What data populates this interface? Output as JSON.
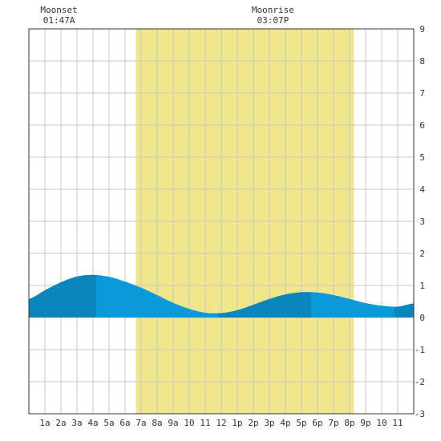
{
  "chart_data": {
    "type": "area",
    "title": "",
    "xlabel": "",
    "ylabel": "",
    "xlim": [
      0,
      24
    ],
    "ylim": [
      -3,
      9
    ],
    "y_axis_side": "right",
    "grid": true,
    "x_tick_labels": [
      "1a",
      "2a",
      "3a",
      "4a",
      "5a",
      "6a",
      "7a",
      "8a",
      "9a",
      "10",
      "11",
      "12",
      "1p",
      "2p",
      "3p",
      "4p",
      "5p",
      "6p",
      "7p",
      "8p",
      "9p",
      "10",
      "11"
    ],
    "y_ticks": [
      -3,
      -2,
      -1,
      0,
      1,
      2,
      3,
      4,
      5,
      6,
      7,
      8,
      9
    ],
    "daylight": {
      "start_hour": 6.67,
      "end_hour": 20.27
    },
    "annotations": [
      {
        "title": "Moonset",
        "time": "01:47A",
        "hour": 1.78
      },
      {
        "title": "Moonrise",
        "time": "03:07P",
        "hour": 15.12
      }
    ],
    "tide_curve": {
      "hours": [
        0,
        1,
        2,
        3,
        4,
        5,
        6,
        7,
        8,
        9,
        10,
        11,
        12,
        13,
        14,
        15,
        16,
        17,
        18,
        19,
        20,
        21,
        22,
        23,
        24
      ],
      "height": [
        0.58,
        0.85,
        1.1,
        1.28,
        1.33,
        1.27,
        1.12,
        0.93,
        0.7,
        0.46,
        0.27,
        0.15,
        0.14,
        0.23,
        0.4,
        0.58,
        0.72,
        0.79,
        0.78,
        0.7,
        0.58,
        0.45,
        0.37,
        0.34,
        0.44
      ]
    },
    "extrema": [
      {
        "type": "high",
        "hour": 4.2,
        "height": 1.33
      },
      {
        "type": "low",
        "hour": 11.8,
        "height": 0.14
      },
      {
        "type": "high",
        "hour": 17.6,
        "height": 0.8
      },
      {
        "type": "low",
        "hour": 22.8,
        "height": 0.33
      }
    ],
    "colors": {
      "daylight": "#f0e68c",
      "tide_rising": "#0b86bd",
      "tide_falling": "#0a9ad9",
      "grid": "#c8c8c8",
      "axis": "#333333"
    }
  }
}
